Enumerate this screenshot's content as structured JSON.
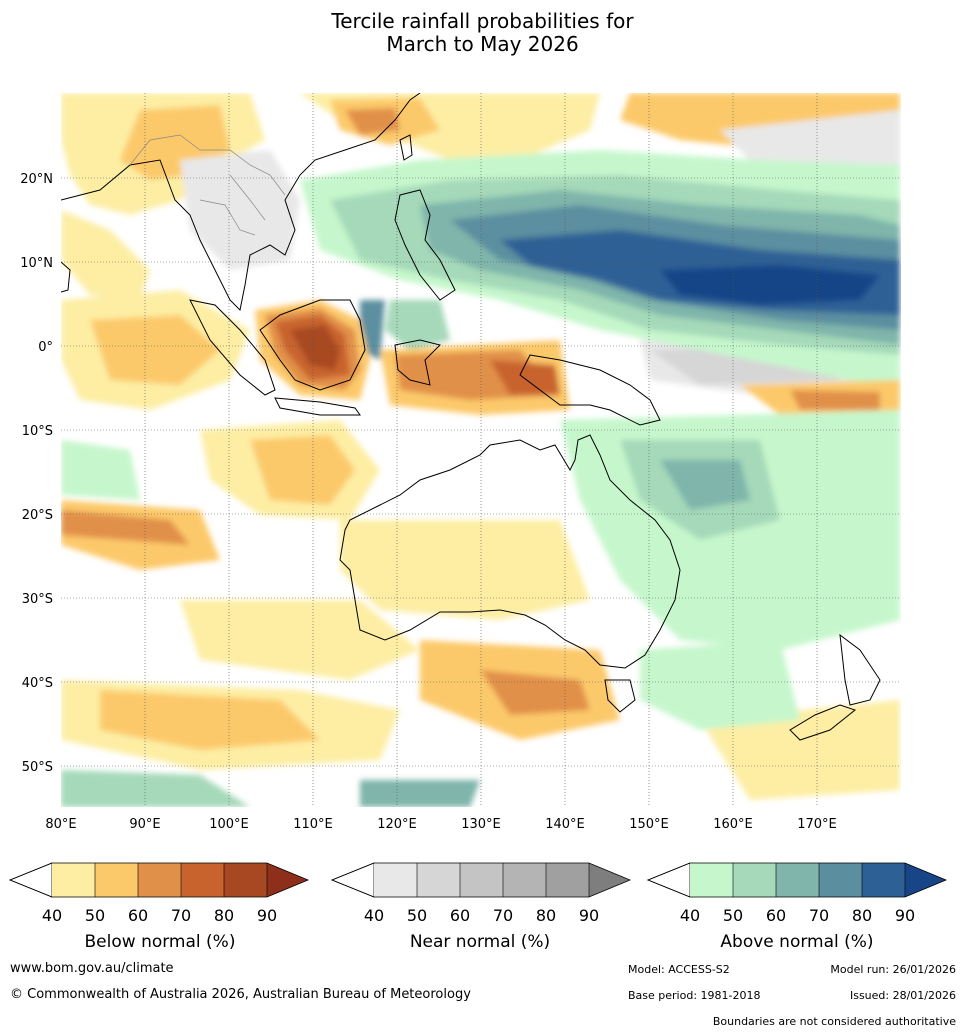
{
  "title_line1": "Tercile rainfall probabilities for",
  "title_line2": "March to May 2026",
  "lat_labels": [
    "20°N",
    "10°N",
    "0°",
    "10°S",
    "20°S",
    "30°S",
    "40°S",
    "50°S"
  ],
  "lon_labels": [
    "80°E",
    "90°E",
    "100°E",
    "110°E",
    "120°E",
    "130°E",
    "140°E",
    "150°E",
    "160°E",
    "170°E"
  ],
  "colorbars": [
    {
      "name": "below",
      "label": "Below normal (%)",
      "ticks": [
        "40",
        "50",
        "60",
        "70",
        "80",
        "90"
      ],
      "colors": [
        "#fdeea4",
        "#fcc96a",
        "#e19049",
        "#c8632e",
        "#a84823",
        "#8d2f1b"
      ]
    },
    {
      "name": "near",
      "label": "Near normal (%)",
      "ticks": [
        "40",
        "50",
        "60",
        "70",
        "80",
        "90"
      ],
      "colors": [
        "#e8e8e8",
        "#d6d6d6",
        "#c4c4c4",
        "#b4b4b4",
        "#a0a0a0",
        "#7e7e7e"
      ]
    },
    {
      "name": "above",
      "label": "Above normal (%)",
      "ticks": [
        "40",
        "50",
        "60",
        "70",
        "80",
        "90"
      ],
      "colors": [
        "#c6f7cc",
        "#a5d9b9",
        "#7fb5ab",
        "#5b8fa0",
        "#2d6196",
        "#184587"
      ]
    }
  ],
  "footer": {
    "website": "www.bom.gov.au/climate",
    "copyright": "© Commonwealth of Australia 2026, Australian Bureau of Meteorology",
    "model": "Model: ACCESS-S2",
    "model_run": "Model run: 26/01/2026",
    "base_period": "Base period: 1981-2018",
    "issued": "Issued: 28/01/2026",
    "disclaimer": "Boundaries are not considered authoritative"
  }
}
